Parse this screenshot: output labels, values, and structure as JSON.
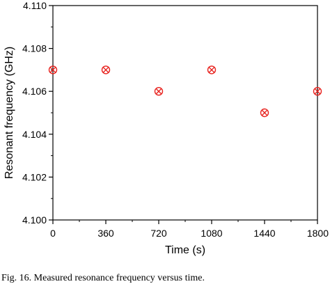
{
  "chart_data": {
    "type": "scatter",
    "title": "",
    "xlabel": "Time (s)",
    "ylabel": "Resonant frequency (GHz)",
    "xlim": [
      0,
      1800
    ],
    "ylim": [
      4.1,
      4.11
    ],
    "xticks": [
      "0",
      "360",
      "720",
      "1080",
      "1440",
      "1800"
    ],
    "yticks": [
      "4.100",
      "4.102",
      "4.104",
      "4.106",
      "4.108",
      "4.110"
    ],
    "series": [
      {
        "x": [
          0,
          360,
          720,
          1080,
          1440,
          1800
        ],
        "y": [
          4.107,
          4.107,
          4.106,
          4.107,
          4.105,
          4.106
        ],
        "marker": "circle-x",
        "color": "#e8231f"
      }
    ],
    "grid": false,
    "legend": "none"
  },
  "caption": "Fig. 16. Measured resonance frequency versus time."
}
